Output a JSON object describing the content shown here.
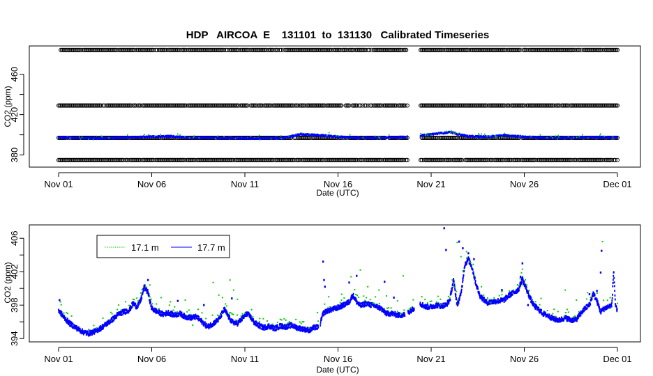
{
  "figure": {
    "title": "HDP   AIRCOA  E    131101  to  131130   Calibrated Timeseries"
  },
  "chart_data": [
    {
      "type": "scatter",
      "xlabel": "Date (UTC)",
      "ylabel": "CO2 (ppm)",
      "x_range_days": [
        0,
        30
      ],
      "ylim": [
        368,
        488
      ],
      "x_ticks": [
        {
          "day": 0,
          "label": "Nov 01"
        },
        {
          "day": 5,
          "label": "Nov 06"
        },
        {
          "day": 10,
          "label": "Nov 11"
        },
        {
          "day": 15,
          "label": "Nov 16"
        },
        {
          "day": 20,
          "label": "Nov 21"
        },
        {
          "day": 25,
          "label": "Nov 26"
        },
        {
          "day": 30,
          "label": "Dec 01"
        }
      ],
      "y_ticks": [
        380,
        420,
        460
      ],
      "y_minor_ticks": [
        400,
        440
      ],
      "calibration_levels_ppm": [
        375,
        397,
        429,
        484
      ],
      "data_gap_days": [
        18.75,
        19.4
      ],
      "series_colors": {
        "calibration": "#000000",
        "sample_a": "#00cc00",
        "sample_b": "#0000ff"
      },
      "ambient_ppm": [
        397.5,
        396.8,
        396.5,
        397,
        397.5,
        398,
        398.5,
        397,
        397,
        396.8,
        396.5,
        396.5,
        396.5,
        400.5,
        399.5,
        398,
        397,
        397,
        397.5,
        398,
        400.5,
        402.5,
        398.5,
        398,
        399.5,
        398,
        397,
        397,
        397.5,
        397.5,
        397.5
      ]
    },
    {
      "type": "scatter",
      "xlabel": "Date (UTC)",
      "ylabel": "CO2 (ppm)",
      "x_range_days": [
        0,
        30
      ],
      "ylim": [
        393.6,
        407.6
      ],
      "x_ticks": [
        {
          "day": 0,
          "label": "Nov 01"
        },
        {
          "day": 5,
          "label": "Nov 06"
        },
        {
          "day": 10,
          "label": "Nov 11"
        },
        {
          "day": 15,
          "label": "Nov 16"
        },
        {
          "day": 20,
          "label": "Nov 21"
        },
        {
          "day": 25,
          "label": "Nov 26"
        },
        {
          "day": 30,
          "label": "Dec 01"
        }
      ],
      "y_ticks": [
        394,
        398,
        402,
        406
      ],
      "y_minor_ticks": [
        396,
        400,
        404
      ],
      "legend": [
        {
          "name": "17.1 m",
          "color": "#00cc00"
        },
        {
          "name": "17.7 m",
          "color": "#0000ff"
        }
      ],
      "series": [
        {
          "name": "17.7 m",
          "color": "#0000ff",
          "points": [
            [
              0,
              397.4
            ],
            [
              0.3,
              396.5
            ],
            [
              0.6,
              395.8
            ],
            [
              1,
              395.2
            ],
            [
              1.3,
              394.8
            ],
            [
              1.6,
              394.6
            ],
            [
              2,
              394.9
            ],
            [
              2.3,
              395.3
            ],
            [
              2.6,
              395.8
            ],
            [
              2.9,
              396.3
            ],
            [
              3.2,
              396.9
            ],
            [
              3.5,
              397.2
            ],
            [
              3.8,
              397.4
            ],
            [
              4,
              398.2
            ],
            [
              4.2,
              397.8
            ],
            [
              4.4,
              398.5
            ],
            [
              4.6,
              400.2
            ],
            [
              4.8,
              399.5
            ],
            [
              5,
              397.6
            ],
            [
              5.3,
              397.2
            ],
            [
              5.6,
              396.9
            ],
            [
              5.9,
              397.1
            ],
            [
              6.2,
              396.8
            ],
            [
              6.5,
              397.0
            ],
            [
              6.8,
              396.6
            ],
            [
              7.1,
              396.5
            ],
            [
              7.4,
              396.6
            ],
            [
              7.7,
              396.0
            ],
            [
              8,
              395.4
            ],
            [
              8.3,
              395.8
            ],
            [
              8.6,
              396.3
            ],
            [
              8.9,
              397.5
            ],
            [
              9.1,
              396.7
            ],
            [
              9.3,
              396.0
            ],
            [
              9.6,
              395.8
            ],
            [
              9.9,
              396.5
            ],
            [
              10.1,
              397.0
            ],
            [
              10.3,
              396.6
            ],
            [
              10.5,
              395.9
            ],
            [
              10.8,
              395.5
            ],
            [
              11,
              395.3
            ],
            [
              11.3,
              395.5
            ],
            [
              11.6,
              395.2
            ],
            [
              11.9,
              395.5
            ],
            [
              12.2,
              395.4
            ],
            [
              12.5,
              395.6
            ],
            [
              12.8,
              395.3
            ],
            [
              13,
              395.2
            ],
            [
              13.2,
              395.1
            ],
            [
              13.5,
              395.0
            ],
            [
              13.7,
              395.3
            ],
            [
              14,
              395.4
            ],
            [
              14.2,
              397.0
            ],
            [
              14.4,
              397.3
            ],
            [
              14.7,
              397.5
            ],
            [
              15,
              397.7
            ],
            [
              15.3,
              398.0
            ],
            [
              15.6,
              398.4
            ],
            [
              15.8,
              399.2
            ],
            [
              16,
              398.4
            ],
            [
              16.2,
              397.9
            ],
            [
              16.5,
              398.2
            ],
            [
              16.8,
              398.0
            ],
            [
              17,
              397.9
            ],
            [
              17.3,
              397.6
            ],
            [
              17.6,
              397.0
            ],
            [
              17.9,
              397.0
            ],
            [
              18.2,
              396.8
            ],
            [
              18.5,
              396.8
            ],
            [
              18.7,
              397.0
            ],
            [
              19.4,
              398.2
            ],
            [
              19.7,
              397.8
            ],
            [
              20,
              397.8
            ],
            [
              20.3,
              398.0
            ],
            [
              20.5,
              397.9
            ],
            [
              20.8,
              398.0
            ],
            [
              21,
              398.6
            ],
            [
              21.2,
              401.0
            ],
            [
              21.4,
              398.0
            ],
            [
              21.6,
              399.3
            ],
            [
              21.8,
              402.8
            ],
            [
              22,
              403.5
            ],
            [
              22.2,
              402.5
            ],
            [
              22.4,
              400.6
            ],
            [
              22.6,
              399.2
            ],
            [
              22.8,
              398.7
            ],
            [
              23,
              398.3
            ],
            [
              23.3,
              398.4
            ],
            [
              23.6,
              398.5
            ],
            [
              23.9,
              398.6
            ],
            [
              24.2,
              399.2
            ],
            [
              24.5,
              399.6
            ],
            [
              24.7,
              399.9
            ],
            [
              24.9,
              401.2
            ],
            [
              25.1,
              400.0
            ],
            [
              25.3,
              398.9
            ],
            [
              25.5,
              398.0
            ],
            [
              25.7,
              397.6
            ],
            [
              26,
              397.0
            ],
            [
              26.3,
              396.7
            ],
            [
              26.6,
              396.3
            ],
            [
              26.9,
              396.2
            ],
            [
              27.2,
              396.5
            ],
            [
              27.5,
              396.2
            ],
            [
              27.8,
              396.3
            ],
            [
              28.1,
              397.2
            ],
            [
              28.3,
              397.7
            ],
            [
              28.5,
              398.0
            ],
            [
              28.7,
              399.4
            ],
            [
              28.9,
              398.5
            ],
            [
              29.1,
              397.2
            ],
            [
              29.3,
              397.6
            ],
            [
              29.5,
              397.8
            ],
            [
              29.7,
              398.0
            ],
            [
              29.8,
              402.2
            ],
            [
              29.9,
              397.8
            ],
            [
              30,
              397.2
            ]
          ],
          "spikes": [
            [
              0.05,
              398.6
            ],
            [
              4.8,
              401.0
            ],
            [
              6.4,
              398.5
            ],
            [
              7.8,
              398.0
            ],
            [
              9.3,
              398.8
            ],
            [
              14.2,
              403.2
            ],
            [
              14.25,
              401.0
            ],
            [
              14.3,
              400.2
            ],
            [
              16.0,
              401.5
            ],
            [
              15.6,
              400.7
            ],
            [
              17.5,
              400.8
            ],
            [
              18.0,
              398.9
            ],
            [
              20.7,
              407.2
            ],
            [
              20.8,
              404.6
            ],
            [
              21.5,
              405.6
            ],
            [
              21.7,
              404.8
            ],
            [
              22.0,
              404.2
            ],
            [
              22.3,
              403.5
            ],
            [
              23.8,
              399.8
            ],
            [
              24.8,
              401.4
            ],
            [
              24.9,
              403.0
            ],
            [
              24.95,
              400.5
            ],
            [
              25.2,
              398.0
            ],
            [
              28.5,
              399.3
            ],
            [
              28.9,
              399.7
            ],
            [
              29.1,
              401.9
            ],
            [
              29.15,
              404.5
            ]
          ]
        },
        {
          "name": "17.1 m",
          "color": "#00cc00",
          "points": [
            [
              0.1,
              398.4
            ],
            [
              3.6,
              398.4
            ],
            [
              4.0,
              398.7
            ],
            [
              4.9,
              400.4
            ],
            [
              5.5,
              398.9
            ],
            [
              6.0,
              398.4
            ],
            [
              6.8,
              398.6
            ],
            [
              7.2,
              395.6
            ],
            [
              8.3,
              400.7
            ],
            [
              8.6,
              399.2
            ],
            [
              8.8,
              398.9
            ],
            [
              9.2,
              401.0
            ],
            [
              9.4,
              399.8
            ],
            [
              9.6,
              398.7
            ],
            [
              10.8,
              396.4
            ],
            [
              12.2,
              396.2
            ],
            [
              13.9,
              397.1
            ],
            [
              14.5,
              399.0
            ],
            [
              15.2,
              399.3
            ],
            [
              15.7,
              401.4
            ],
            [
              16.2,
              402.2
            ],
            [
              16.6,
              400.2
            ],
            [
              17.2,
              399.8
            ],
            [
              17.6,
              399.1
            ],
            [
              18.2,
              398.5
            ],
            [
              18.4,
              397.0
            ],
            [
              19.5,
              399.0
            ],
            [
              20.5,
              398.7
            ],
            [
              21.4,
              405.5
            ],
            [
              21.6,
              403.8
            ],
            [
              21.9,
              404.4
            ],
            [
              22.7,
              400.2
            ],
            [
              23.2,
              398.3
            ],
            [
              23.8,
              399.6
            ],
            [
              24.2,
              399.7
            ],
            [
              24.9,
              402.3
            ],
            [
              25.6,
              398.4
            ],
            [
              25.9,
              398.8
            ],
            [
              26.6,
              397.5
            ],
            [
              27.2,
              399.8
            ],
            [
              27.8,
              398.6
            ],
            [
              28.4,
              399.5
            ],
            [
              29.2,
              405.6
            ],
            [
              29.6,
              397.6
            ],
            [
              30,
              398.2
            ],
            [
              18.5,
              401.5
            ],
            [
              6.9,
              397.2
            ]
          ]
        }
      ]
    }
  ]
}
